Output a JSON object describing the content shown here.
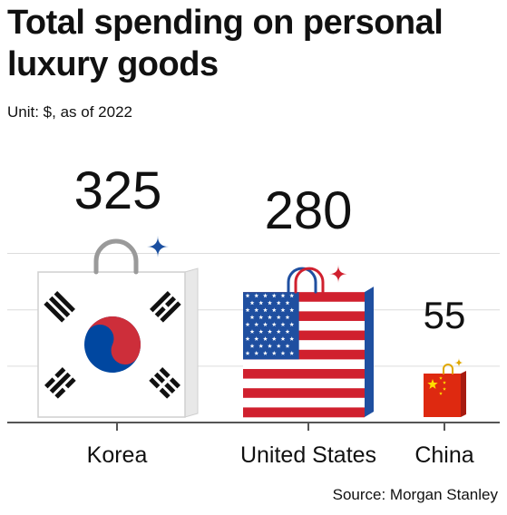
{
  "title": "Total spending on personal luxury goods",
  "unit_note": "Unit: $, as of 2022",
  "source": "Source: Morgan Stanley",
  "chart_data": {
    "type": "bar",
    "categories": [
      "Korea",
      "United States",
      "China"
    ],
    "values": [
      325,
      280,
      55
    ],
    "bar_style": [
      "korea-flag-shopping-bag",
      "us-flag-shopping-bag",
      "china-flag-shopping-bag"
    ],
    "grid": true,
    "ylim": [
      0,
      400
    ]
  },
  "colors": {
    "gridline": "#dcdcdc",
    "baseline": "#555555",
    "korea_red": "#cd2e3a",
    "korea_blue": "#0047a0",
    "us_red": "#d0202e",
    "us_blue": "#1f4fa0",
    "china_red": "#de2910",
    "china_yellow": "#ffde00",
    "sparkle_blue": "#1a4fa0",
    "sparkle_red": "#d0202e",
    "sparkle_gold": "#e0a800"
  }
}
